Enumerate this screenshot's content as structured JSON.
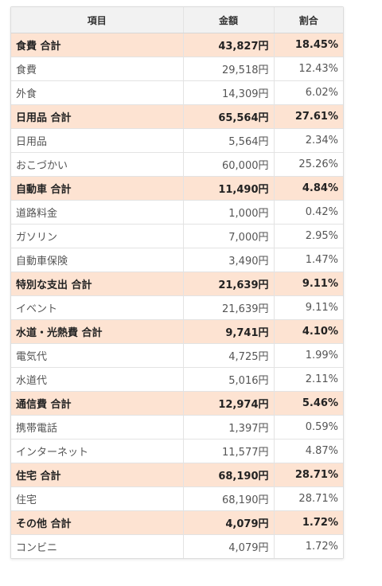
{
  "header": {
    "item": "項目",
    "amount": "金額",
    "ratio": "割合"
  },
  "rows": [
    {
      "type": "total",
      "name": "食費 合計",
      "amount": "43,827円",
      "ratio": "18.45%"
    },
    {
      "type": "item",
      "name": "食費",
      "amount": "29,518円",
      "ratio": "12.43%"
    },
    {
      "type": "item",
      "name": "外食",
      "amount": "14,309円",
      "ratio": "6.02%"
    },
    {
      "type": "total",
      "name": "日用品 合計",
      "amount": "65,564円",
      "ratio": "27.61%"
    },
    {
      "type": "item",
      "name": "日用品",
      "amount": "5,564円",
      "ratio": "2.34%"
    },
    {
      "type": "item",
      "name": "おこづかい",
      "amount": "60,000円",
      "ratio": "25.26%"
    },
    {
      "type": "total",
      "name": "自動車 合計",
      "amount": "11,490円",
      "ratio": "4.84%"
    },
    {
      "type": "item",
      "name": "道路料金",
      "amount": "1,000円",
      "ratio": "0.42%"
    },
    {
      "type": "item",
      "name": "ガソリン",
      "amount": "7,000円",
      "ratio": "2.95%"
    },
    {
      "type": "item",
      "name": "自動車保険",
      "amount": "3,490円",
      "ratio": "1.47%"
    },
    {
      "type": "total",
      "name": "特別な支出 合計",
      "amount": "21,639円",
      "ratio": "9.11%"
    },
    {
      "type": "item",
      "name": "イベント",
      "amount": "21,639円",
      "ratio": "9.11%"
    },
    {
      "type": "total",
      "name": "水道・光熱費 合計",
      "amount": "9,741円",
      "ratio": "4.10%"
    },
    {
      "type": "item",
      "name": "電気代",
      "amount": "4,725円",
      "ratio": "1.99%"
    },
    {
      "type": "item",
      "name": "水道代",
      "amount": "5,016円",
      "ratio": "2.11%"
    },
    {
      "type": "total",
      "name": "通信費 合計",
      "amount": "12,974円",
      "ratio": "5.46%"
    },
    {
      "type": "item",
      "name": "携帯電話",
      "amount": "1,397円",
      "ratio": "0.59%"
    },
    {
      "type": "item",
      "name": "インターネット",
      "amount": "11,577円",
      "ratio": "4.87%"
    },
    {
      "type": "total",
      "name": "住宅 合計",
      "amount": "68,190円",
      "ratio": "28.71%"
    },
    {
      "type": "item",
      "name": "住宅",
      "amount": "68,190円",
      "ratio": "28.71%"
    },
    {
      "type": "total",
      "name": "その他 合計",
      "amount": "4,079円",
      "ratio": "1.72%"
    },
    {
      "type": "item",
      "name": "コンビニ",
      "amount": "4,079円",
      "ratio": "1.72%"
    }
  ]
}
